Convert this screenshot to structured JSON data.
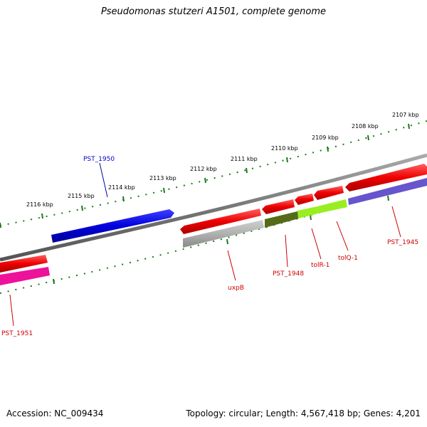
{
  "title": "Pseudomonas stutzeri A1501, complete genome",
  "footer": {
    "accession": "Accession: NC_009434",
    "summary": "Topology: circular; Length: 4,567,418 bp; Genes: 4,201"
  },
  "tick_labels": [
    "2116 kbp",
    "2115 kbp",
    "2114 kbp",
    "2113 kbp",
    "2112 kbp",
    "2111 kbp",
    "2110 kbp",
    "2109 kbp",
    "2108 kbp",
    "2107 kbp"
  ],
  "genes": [
    {
      "name": "PST_1950",
      "color": "#0000dd",
      "strand": "forward"
    },
    {
      "name": "PST_1951",
      "color": "#dd0000",
      "strand": "reverse"
    },
    {
      "name": "uxpB",
      "color": "#dd0000",
      "strand": "reverse"
    },
    {
      "name": "PST_1948",
      "color": "#dd0000",
      "strand": "reverse"
    },
    {
      "name": "tolR-1",
      "color": "#dd0000",
      "strand": "reverse"
    },
    {
      "name": "tolQ-1",
      "color": "#dd0000",
      "strand": "reverse"
    },
    {
      "name": "PST_1945",
      "color": "#dd0000",
      "strand": "reverse"
    }
  ],
  "colors": {
    "backbone": "#777777",
    "ticks": "#1a7a1a",
    "forward_gene": "#0000dd",
    "reverse_gene": "#ee0000",
    "cog_magenta": "#ee1199",
    "cog_grey": "#b0b0b0",
    "cog_olive": "#556b1a",
    "cog_lime": "#99ee22",
    "cog_slate": "#6655cc"
  }
}
